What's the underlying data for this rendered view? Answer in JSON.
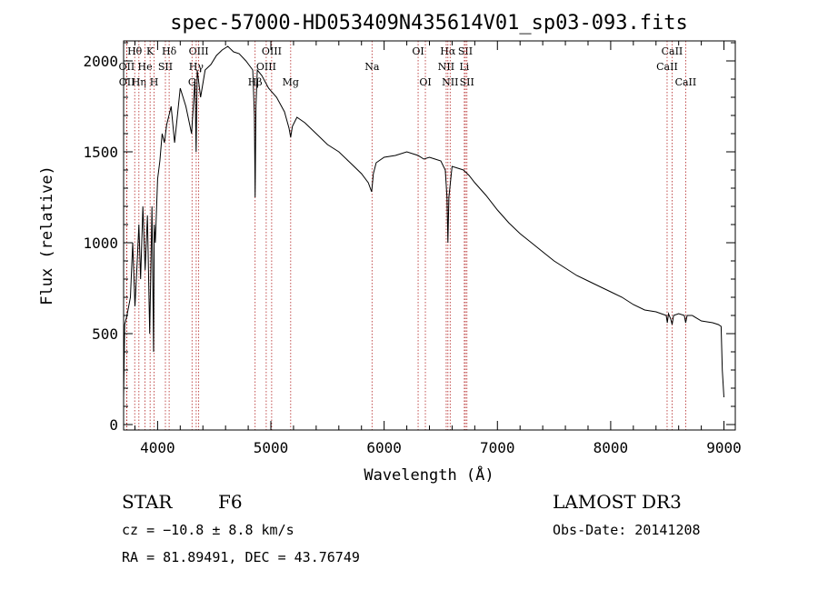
{
  "chart_data": {
    "type": "line",
    "title": "spec-57000-HD053409N435614V01_sp03-093.fits",
    "xlabel": "Wavelength (Å)",
    "ylabel": "Flux (relative)",
    "xlim": [
      3700,
      9100
    ],
    "ylim": [
      -30,
      2110
    ],
    "xticks": [
      4000,
      5000,
      6000,
      7000,
      8000,
      9000
    ],
    "yticks": [
      0,
      500,
      1000,
      1500,
      2000
    ],
    "series": [
      {
        "name": "spectrum",
        "x": [
          3700,
          3710,
          3730,
          3760,
          3780,
          3800,
          3820,
          3835,
          3850,
          3870,
          3890,
          3910,
          3930,
          3950,
          3965,
          3970,
          3980,
          4000,
          4020,
          4040,
          4060,
          4080,
          4100,
          4120,
          4150,
          4200,
          4250,
          4300,
          4330,
          4340,
          4350,
          4380,
          4420,
          4470,
          4520,
          4570,
          4620,
          4670,
          4720,
          4780,
          4840,
          4855,
          4861,
          4868,
          4880,
          4920,
          4980,
          5050,
          5120,
          5160,
          5175,
          5190,
          5230,
          5300,
          5400,
          5500,
          5600,
          5700,
          5800,
          5860,
          5890,
          5896,
          5905,
          5930,
          6000,
          6100,
          6200,
          6300,
          6350,
          6400,
          6450,
          6500,
          6540,
          6555,
          6563,
          6572,
          6600,
          6650,
          6700,
          6750,
          6800,
          6900,
          7000,
          7100,
          7200,
          7300,
          7400,
          7500,
          7600,
          7700,
          7800,
          7900,
          8000,
          8100,
          8200,
          8300,
          8400,
          8490,
          8500,
          8510,
          8530,
          8542,
          8555,
          8600,
          8650,
          8662,
          8675,
          8720,
          8800,
          8900,
          8950,
          8975,
          8985,
          9000
        ],
        "y": [
          150,
          550,
          600,
          700,
          1000,
          650,
          900,
          1100,
          800,
          1200,
          850,
          1150,
          500,
          1200,
          400,
          1100,
          1000,
          1350,
          1450,
          1600,
          1550,
          1650,
          1700,
          1750,
          1550,
          1850,
          1750,
          1600,
          1900,
          1500,
          1950,
          1800,
          1950,
          1980,
          2030,
          2060,
          2080,
          2050,
          2040,
          2000,
          1950,
          1700,
          1250,
          1750,
          1950,
          1920,
          1850,
          1800,
          1720,
          1630,
          1580,
          1640,
          1690,
          1660,
          1600,
          1540,
          1500,
          1440,
          1380,
          1330,
          1280,
          1320,
          1380,
          1440,
          1470,
          1480,
          1500,
          1480,
          1460,
          1470,
          1460,
          1450,
          1400,
          1250,
          1000,
          1250,
          1420,
          1410,
          1400,
          1370,
          1330,
          1260,
          1180,
          1110,
          1050,
          1000,
          950,
          900,
          860,
          820,
          790,
          760,
          730,
          700,
          660,
          630,
          620,
          600,
          560,
          610,
          580,
          550,
          600,
          610,
          600,
          560,
          600,
          600,
          570,
          560,
          550,
          540,
          300,
          150
        ]
      }
    ],
    "lines": [
      {
        "name": "Hθ",
        "wave": 3798,
        "row": 0
      },
      {
        "name": "OII",
        "wave": 3727,
        "row": 1
      },
      {
        "name": "OII",
        "wave": 3729,
        "row": 2
      },
      {
        "name": "Hη",
        "wave": 3835,
        "row": 2
      },
      {
        "name": "He",
        "wave": 3889,
        "row": 1
      },
      {
        "name": "K",
        "wave": 3934,
        "row": 0
      },
      {
        "name": "H",
        "wave": 3969,
        "row": 2
      },
      {
        "name": "SII",
        "wave": 4069,
        "row": 1
      },
      {
        "name": "Hδ",
        "wave": 4102,
        "row": 0
      },
      {
        "name": "OIII",
        "wave": 4363,
        "row": 0
      },
      {
        "name": "Hγ",
        "wave": 4341,
        "row": 1
      },
      {
        "name": "G",
        "wave": 4304,
        "row": 2
      },
      {
        "name": "Hβ",
        "wave": 4861,
        "row": 2
      },
      {
        "name": "OIII",
        "wave": 5007,
        "row": 0
      },
      {
        "name": "OIII",
        "wave": 4959,
        "row": 1
      },
      {
        "name": "Mg",
        "wave": 5175,
        "row": 2
      },
      {
        "name": "Na",
        "wave": 5893,
        "row": 1
      },
      {
        "name": "OI",
        "wave": 6300,
        "row": 0
      },
      {
        "name": "OI",
        "wave": 6364,
        "row": 2
      },
      {
        "name": "Hα",
        "wave": 6563,
        "row": 0
      },
      {
        "name": "NII",
        "wave": 6548,
        "row": 1
      },
      {
        "name": "NII",
        "wave": 6583,
        "row": 2
      },
      {
        "name": "SII",
        "wave": 6717,
        "row": 0
      },
      {
        "name": "Li",
        "wave": 6708,
        "row": 1
      },
      {
        "name": "SII",
        "wave": 6731,
        "row": 2
      },
      {
        "name": "CaII",
        "wave": 8542,
        "row": 0
      },
      {
        "name": "CaII",
        "wave": 8498,
        "row": 1
      },
      {
        "name": "CaII",
        "wave": 8662,
        "row": 2
      }
    ]
  },
  "info": {
    "object_class": "STAR",
    "subclass": "F6",
    "survey": "LAMOST DR3",
    "cz": "cz = −10.8 ± 8.8 km/s",
    "obs_date": "Obs-Date: 20141208",
    "coords": "RA =  81.89491, DEC =  43.76749"
  }
}
